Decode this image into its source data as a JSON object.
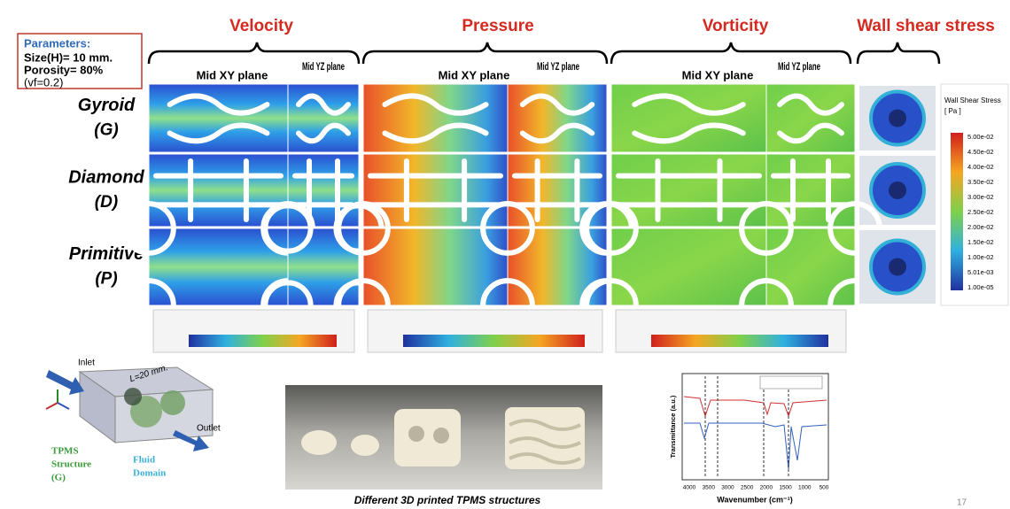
{
  "parameters": {
    "heading": "Parameters:",
    "lines": [
      "Size(H)= 10 mm.",
      "Porosity= 80%",
      "(vf=0.2)"
    ]
  },
  "columns": [
    {
      "title": "Velocity",
      "planes": [
        "Mid XY plane",
        "Mid YZ plane"
      ]
    },
    {
      "title": "Pressure",
      "planes": [
        "Mid XY plane",
        "Mid YZ plane"
      ]
    },
    {
      "title": "Vorticity",
      "planes": [
        "Mid XY plane",
        "Mid YZ plane"
      ]
    },
    {
      "title": "Wall shear stress"
    }
  ],
  "rows": [
    {
      "name": "Gyroid",
      "abbr": "(G)"
    },
    {
      "name": "Diamond",
      "abbr": "(D)"
    },
    {
      "name": "Primitive",
      "abbr": "(P)"
    }
  ],
  "wall_shear_legend": {
    "title": "Wall Shear Stress",
    "unit": "[ Pa ]",
    "labels": [
      "5.00e-02",
      "4.50e-02",
      "4.00e-02",
      "3.50e-02",
      "3.00e-02",
      "2.50e-02",
      "2.00e-02",
      "1.50e-02",
      "1.00e-02",
      "5.01e-03",
      "1.00e-05"
    ]
  },
  "domain_diagram": {
    "inlet": "Inlet",
    "length": "L=20 mm.",
    "outlet": "Outlet",
    "structure": [
      "TPMS",
      "Structure",
      "(G)"
    ],
    "fluid": [
      "Fluid",
      "Domain"
    ]
  },
  "photo_caption": "Different 3D printed TPMS structures",
  "ftir": {
    "ylabel": "Transmittance (a.u.)",
    "xlabel": "Wavenumber (cm⁻¹)",
    "xticks": [
      "4000",
      "3500",
      "3000",
      "2500",
      "2000",
      "1500",
      "1000",
      "500"
    ]
  },
  "slide_number": "17"
}
